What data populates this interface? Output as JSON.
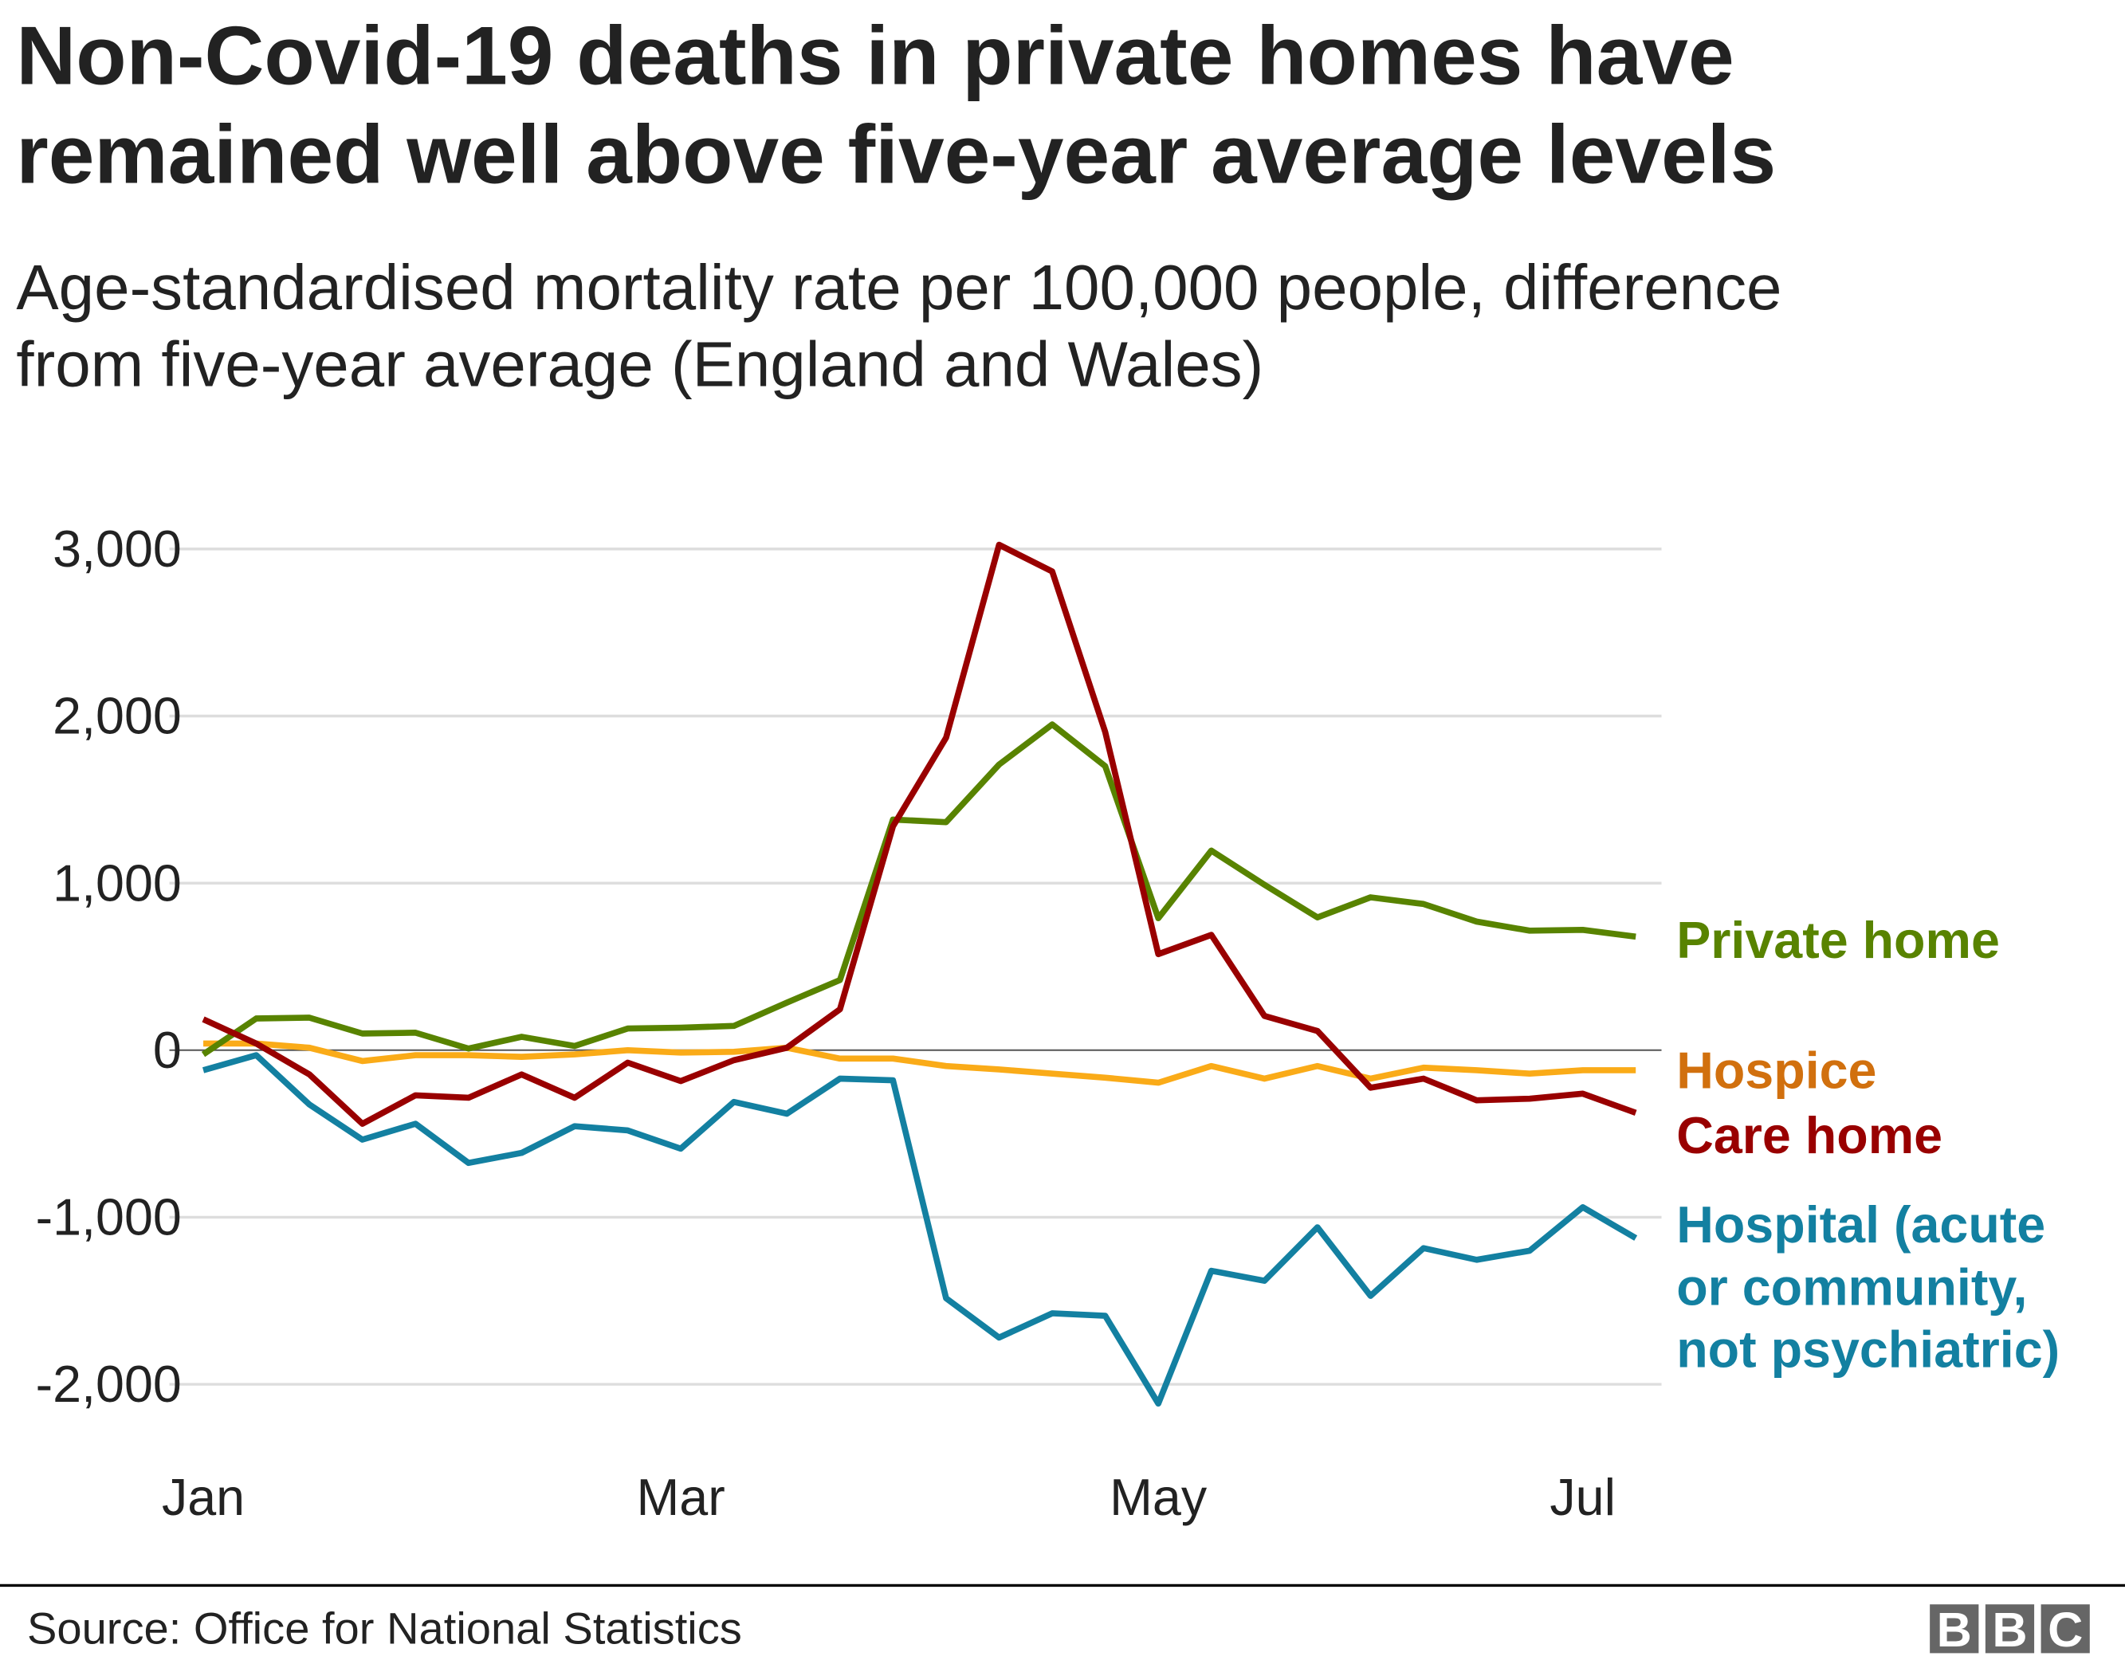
{
  "title": [
    "Non-Covid-19 deaths in private homes have",
    "remained well above five-year average levels"
  ],
  "subtitle": [
    "Age-standardised mortality rate per 100,000 people, difference",
    "from five-year average (England and Wales)"
  ],
  "source": "Source: Office for National Statistics",
  "logo": "BBC",
  "chart_data": {
    "type": "line",
    "title": "Non-Covid-19 deaths in private homes have remained well above five-year average levels",
    "ylabel": "",
    "xlabel": "",
    "ylim": [
      -2000,
      3000
    ],
    "yticks": [
      3000,
      2000,
      1000,
      0,
      -1000,
      -2000
    ],
    "ytick_labels": [
      "3,000",
      "2,000",
      "1,000",
      "0",
      "-1,000",
      "-2,000"
    ],
    "xtick_labels": [
      "Jan",
      "Mar",
      "May",
      "Jul"
    ],
    "xtick_positions": [
      0,
      9,
      18,
      26
    ],
    "grid": true,
    "legend": "direct labels at right end of lines",
    "n_points": 28,
    "series": [
      {
        "name": "Private home",
        "color": "#588300",
        "label_color": "#588300",
        "values": [
          -25,
          190,
          195,
          100,
          105,
          10,
          80,
          25,
          130,
          135,
          145,
          285,
          420,
          1380,
          1365,
          1710,
          1950,
          1700,
          790,
          1195,
          990,
          795,
          915,
          875,
          770,
          715,
          720,
          680
        ]
      },
      {
        "name": "Hospice",
        "color": "#FAAB18",
        "label_color": "#D1700E",
        "values": [
          40,
          40,
          15,
          -65,
          -30,
          -30,
          -40,
          -25,
          0,
          -15,
          -10,
          15,
          -50,
          -50,
          -95,
          -115,
          -140,
          -165,
          -195,
          -95,
          -170,
          -95,
          -170,
          -105,
          -120,
          -140,
          -120,
          -120
        ]
      },
      {
        "name": "Care home",
        "color": "#990000",
        "label_color": "#990000",
        "values": [
          185,
          40,
          -145,
          -440,
          -270,
          -285,
          -145,
          -285,
          -75,
          -185,
          -60,
          15,
          245,
          1340,
          1870,
          3025,
          2865,
          1905,
          575,
          690,
          205,
          115,
          -225,
          -170,
          -300,
          -290,
          -260,
          -375
        ]
      },
      {
        "name": "Hospital (acute or community, not psychiatric)",
        "color": "#1380A1",
        "label_color": "#1380A1",
        "label_lines": [
          "Hospital (acute",
          "or community,",
          "not psychiatric)"
        ],
        "values": [
          -120,
          -30,
          -325,
          -535,
          -440,
          -675,
          -615,
          -455,
          -480,
          -590,
          -310,
          -380,
          -170,
          -180,
          -1485,
          -1720,
          -1575,
          -1590,
          -2115,
          -1320,
          -1380,
          -1060,
          -1470,
          -1185,
          -1255,
          -1200,
          -940,
          -1125
        ]
      }
    ]
  }
}
